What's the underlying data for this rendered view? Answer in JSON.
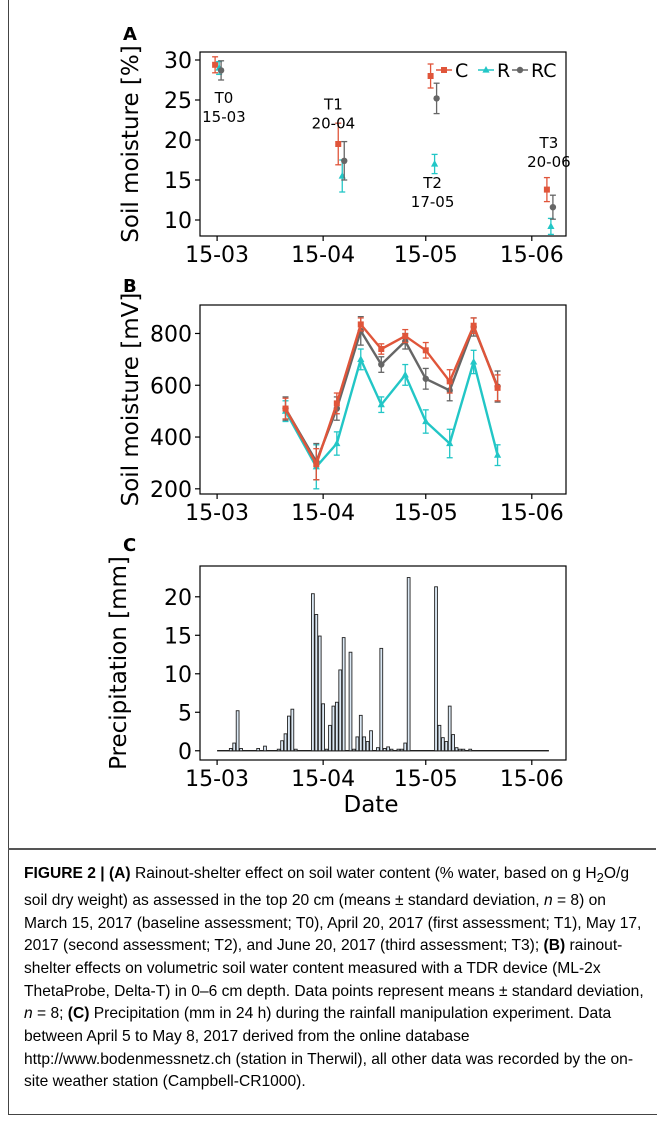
{
  "colors": {
    "C": "#e0553a",
    "R": "#22c6c6",
    "RC": "#666666",
    "bar_fill": "#dbe8f4",
    "bar_stroke": "#222222"
  },
  "panel_labels": {
    "a": "A",
    "b": "B",
    "c": "C"
  },
  "chart_data": [
    {
      "type": "scatter",
      "panel": "A",
      "ylabel": "Soil moisture [%]",
      "x_ticks": [
        "15-03",
        "15-04",
        "15-05",
        "15-06"
      ],
      "y_ticks": [
        10,
        15,
        20,
        25,
        30
      ],
      "ylim": [
        8,
        31
      ],
      "xlim": [
        "2017-03-10",
        "2017-06-25"
      ],
      "legend": {
        "placement": "top-right",
        "entries": [
          "C",
          "R",
          "RC"
        ]
      },
      "series": [
        {
          "name": "C",
          "points": [
            {
              "x": "2017-03-15",
              "y": 29.4,
              "err": 1.0
            },
            {
              "x": "2017-04-20",
              "y": 19.5,
              "err": 2.6
            },
            {
              "x": "2017-05-17",
              "y": 28.0,
              "err": 1.5
            },
            {
              "x": "2017-06-20",
              "y": 13.8,
              "err": 1.5
            }
          ]
        },
        {
          "name": "R",
          "points": [
            {
              "x": "2017-03-15",
              "y": 29.0,
              "err": 0.8
            },
            {
              "x": "2017-04-20",
              "y": 15.5,
              "err": 2.0
            },
            {
              "x": "2017-05-17",
              "y": 17.0,
              "err": 1.2
            },
            {
              "x": "2017-06-20",
              "y": 9.2,
              "err": 1.0
            }
          ]
        },
        {
          "name": "RC",
          "points": [
            {
              "x": "2017-03-15",
              "y": 28.7,
              "err": 1.2
            },
            {
              "x": "2017-04-20",
              "y": 17.4,
              "err": 2.4
            },
            {
              "x": "2017-05-17",
              "y": 25.2,
              "err": 1.9
            },
            {
              "x": "2017-06-20",
              "y": 11.6,
              "err": 1.5
            }
          ]
        }
      ],
      "annotations": [
        {
          "label": "T0",
          "date": "15-03",
          "x": "2017-03-17",
          "y": 24.6
        },
        {
          "label": "T1",
          "date": "20-04",
          "x": "2017-04-18",
          "y": 23.8
        },
        {
          "label": "T2",
          "date": "17-05",
          "x": "2017-05-17",
          "y": 14.0
        },
        {
          "label": "T3",
          "date": "20-06",
          "x": "2017-06-20",
          "y": 19.0
        }
      ]
    },
    {
      "type": "line",
      "panel": "B",
      "ylabel": "Soil moisture [mV]",
      "x_ticks": [
        "15-03",
        "15-04",
        "15-05",
        "15-06"
      ],
      "y_ticks": [
        200,
        400,
        600,
        800
      ],
      "ylim": [
        180,
        910
      ],
      "xlim": [
        "2017-03-10",
        "2017-06-25"
      ],
      "x": [
        "2017-04-04",
        "2017-04-13",
        "2017-04-19",
        "2017-04-26",
        "2017-05-02",
        "2017-05-09",
        "2017-05-15",
        "2017-05-22",
        "2017-05-29",
        "2017-06-05"
      ],
      "series": [
        {
          "name": "C",
          "values": [
            510,
            295,
            530,
            835,
            740,
            790,
            735,
            615,
            830,
            590
          ],
          "errors": [
            40,
            60,
            40,
            25,
            20,
            25,
            30,
            45,
            30,
            50
          ]
        },
        {
          "name": "R",
          "values": [
            500,
            285,
            375,
            700,
            525,
            640,
            460,
            375,
            690,
            330
          ],
          "errors": [
            40,
            85,
            45,
            40,
            30,
            40,
            45,
            55,
            45,
            40
          ]
        },
        {
          "name": "RC",
          "values": [
            510,
            305,
            510,
            810,
            680,
            770,
            625,
            580,
            825,
            595
          ],
          "errors": [
            45,
            70,
            45,
            55,
            30,
            30,
            40,
            40,
            35,
            60
          ]
        }
      ]
    },
    {
      "type": "bar",
      "panel": "C",
      "ylabel": "Precipitation [mm]",
      "xlabel": "Date",
      "x_ticks": [
        "15-03",
        "15-04",
        "15-05",
        "15-06"
      ],
      "y_ticks": [
        0,
        5,
        10,
        15,
        20
      ],
      "ylim": [
        -1.2,
        24
      ],
      "xlim": [
        "2017-03-10",
        "2017-06-25"
      ],
      "x": [
        "2017-03-19",
        "2017-03-20",
        "2017-03-21",
        "2017-03-22",
        "2017-03-27",
        "2017-03-29",
        "2017-04-02",
        "2017-04-03",
        "2017-04-04",
        "2017-04-05",
        "2017-04-06",
        "2017-04-07",
        "2017-04-12",
        "2017-04-13",
        "2017-04-14",
        "2017-04-15",
        "2017-04-16",
        "2017-04-17",
        "2017-04-18",
        "2017-04-19",
        "2017-04-20",
        "2017-04-21",
        "2017-04-23",
        "2017-04-24",
        "2017-04-25",
        "2017-04-26",
        "2017-04-27",
        "2017-04-28",
        "2017-04-29",
        "2017-05-01",
        "2017-05-02",
        "2017-05-03",
        "2017-05-04",
        "2017-05-05",
        "2017-05-07",
        "2017-05-08",
        "2017-05-09",
        "2017-05-10",
        "2017-05-18",
        "2017-05-19",
        "2017-05-20",
        "2017-05-21",
        "2017-05-22",
        "2017-05-23",
        "2017-05-24",
        "2017-05-25",
        "2017-05-26",
        "2017-05-28"
      ],
      "values": [
        0.3,
        1.0,
        5.2,
        0.3,
        0.3,
        0.6,
        0.2,
        1.3,
        2.2,
        4.5,
        5.4,
        0.2,
        20.4,
        17.7,
        14.9,
        6.1,
        0.2,
        3.3,
        5.8,
        6.3,
        10.5,
        14.7,
        12.8,
        0.2,
        1.8,
        4.6,
        1.8,
        1.2,
        2.6,
        0.4,
        13.3,
        0.3,
        0.5,
        0.2,
        0.2,
        0.2,
        1.0,
        22.5,
        21.3,
        3.3,
        1.7,
        1.2,
        5.8,
        2.1,
        0.4,
        0.2,
        0.2,
        0.2
      ]
    }
  ],
  "caption": {
    "figure_label": "FIGURE 2 | ",
    "a_label": "(A)",
    "a_text_1": " Rainout-shelter effect on soil water content (% water, based on g H",
    "a_sub_1": "2",
    "a_text_2": "O/g soil dry weight) as assessed in the top 20 cm (means ± standard deviation, ",
    "n_symbol": "n",
    "a_text_3": " = 8) on March 15, 2017 (baseline assessment; T0), April 20, 2017 (first assessment; T1), May 17, 2017 (second assessment; T2), and June 20, 2017 (third assessment; T3); ",
    "b_label": "(B)",
    "b_text_1": " rainout-shelter effects on volumetric soil water content measured with a TDR device (ML-2x ThetaProbe, Delta-T) in 0–6 cm depth. Data points represent means ± standard deviation, ",
    "b_text_2": " = 8; ",
    "c_label": "(C)",
    "c_text": " Precipitation (mm in 24 h) during the rainfall manipulation experiment. Data between April 5 to May 8, 2017 derived from the online database http://www.bodenmessnetz.ch (station in Therwil), all other data was recorded by the on-site weather station (Campbell-CR1000)."
  }
}
